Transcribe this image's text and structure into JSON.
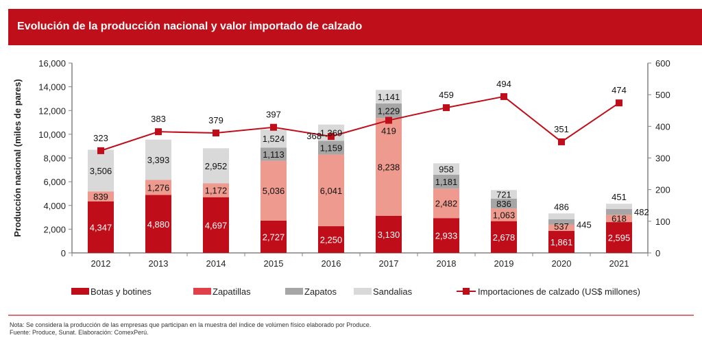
{
  "header": {
    "title": "Evolución de la producción nacional y valor importado de calzado"
  },
  "footer": {
    "note": "Nota: Se considera la producción de las empresas que participan en la muestra del índice de volúmen físico elaborado por Produce.",
    "source": "Fuente: Produce, Sunat. Elaboración: ComexPerú."
  },
  "chart_data": {
    "type": "bar",
    "subtype": "stacked-bar-with-line-secondary-axis",
    "title": "Evolución de la producción nacional y valor importado de calzado",
    "categories": [
      "2012",
      "2013",
      "2014",
      "2015",
      "2016",
      "2017",
      "2018",
      "2019",
      "2020",
      "2021"
    ],
    "ylabel": "Producción nacional (miles de pares)",
    "ylim": [
      0,
      16000
    ],
    "yticks": [
      "0",
      "2,000",
      "4,000",
      "6,000",
      "8,000",
      "10,000",
      "12,000",
      "14,000",
      "16,000"
    ],
    "ytick_values": [
      0,
      2000,
      4000,
      6000,
      8000,
      10000,
      12000,
      14000,
      16000
    ],
    "y2lim": [
      0,
      600
    ],
    "y2ticks": [
      "0",
      "100",
      "200",
      "300",
      "400",
      "500",
      "600"
    ],
    "y2tick_values": [
      0,
      100,
      200,
      300,
      400,
      500,
      600
    ],
    "grid": false,
    "legend_position": "bottom",
    "series": [
      {
        "name": "Botas y botines",
        "kind": "bar",
        "axis": "left",
        "color": "#c00d1a",
        "values": [
          4347,
          4880,
          4697,
          2727,
          2250,
          3130,
          2933,
          2678,
          1861,
          2595
        ],
        "labels": [
          "4,347",
          "4,880",
          "4,697",
          "2,727",
          "2,250",
          "3,130",
          "2,933",
          "2,678",
          "1,861",
          "2,595"
        ]
      },
      {
        "name": "Zapatillas",
        "kind": "bar",
        "axis": "left",
        "color": "#ef9a8e",
        "legend_color": "#e0404a",
        "values": [
          839,
          1276,
          1172,
          5036,
          6041,
          8238,
          2482,
          1063,
          537,
          618
        ],
        "labels": [
          "839",
          "1,276",
          "1,172",
          "5,036",
          "6,041",
          "8,238",
          "2,482",
          "1,063",
          "537",
          "618"
        ]
      },
      {
        "name": "Zapatos",
        "kind": "bar",
        "axis": "left",
        "color": "#a6a6a6",
        "values": [
          0,
          0,
          0,
          1113,
          1159,
          1229,
          1181,
          836,
          445,
          482
        ],
        "labels": [
          "",
          "",
          "",
          "1,113",
          "1,159",
          "1,229",
          "1,181",
          "836",
          "445",
          "482"
        ]
      },
      {
        "name": "Sandalias",
        "kind": "bar",
        "axis": "left",
        "color": "#d9d9d9",
        "values": [
          3506,
          3393,
          2952,
          1524,
          1369,
          1141,
          958,
          721,
          486,
          451
        ],
        "labels": [
          "3,506",
          "3,393",
          "2,952",
          "1,524",
          "1,369",
          "1,141",
          "958",
          "721",
          "486",
          "451"
        ]
      },
      {
        "name": "Importaciones de calzado (US$ millones)",
        "kind": "line",
        "axis": "right",
        "color": "#c00d1a",
        "values": [
          323,
          383,
          379,
          397,
          368,
          419,
          459,
          494,
          351,
          474
        ],
        "labels": [
          "323",
          "383",
          "379",
          "397",
          "368",
          "419",
          "459",
          "494",
          "351",
          "474"
        ]
      }
    ]
  }
}
